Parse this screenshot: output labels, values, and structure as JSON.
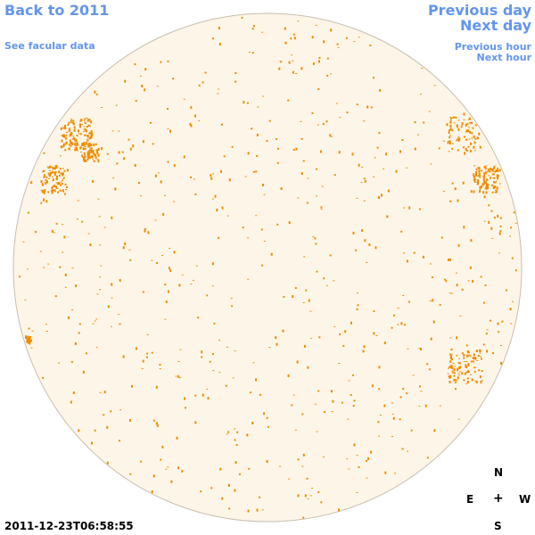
{
  "nav": {
    "back": "Back to 2011",
    "facular": "See facular data",
    "prev_day": "Previous day",
    "next_day": "Next day",
    "prev_hour": "Previous hour",
    "next_hour": "Next hour"
  },
  "compass": {
    "north": "N",
    "east": "E",
    "center": "+",
    "west": "W",
    "south": "S"
  },
  "timestamp": "2011-12-23T06:58:55",
  "colors": {
    "link": "#6495ed",
    "disk_fill": "#fdf6e8",
    "disk_edge": "#c8beb0",
    "feature": "#f08c00"
  }
}
